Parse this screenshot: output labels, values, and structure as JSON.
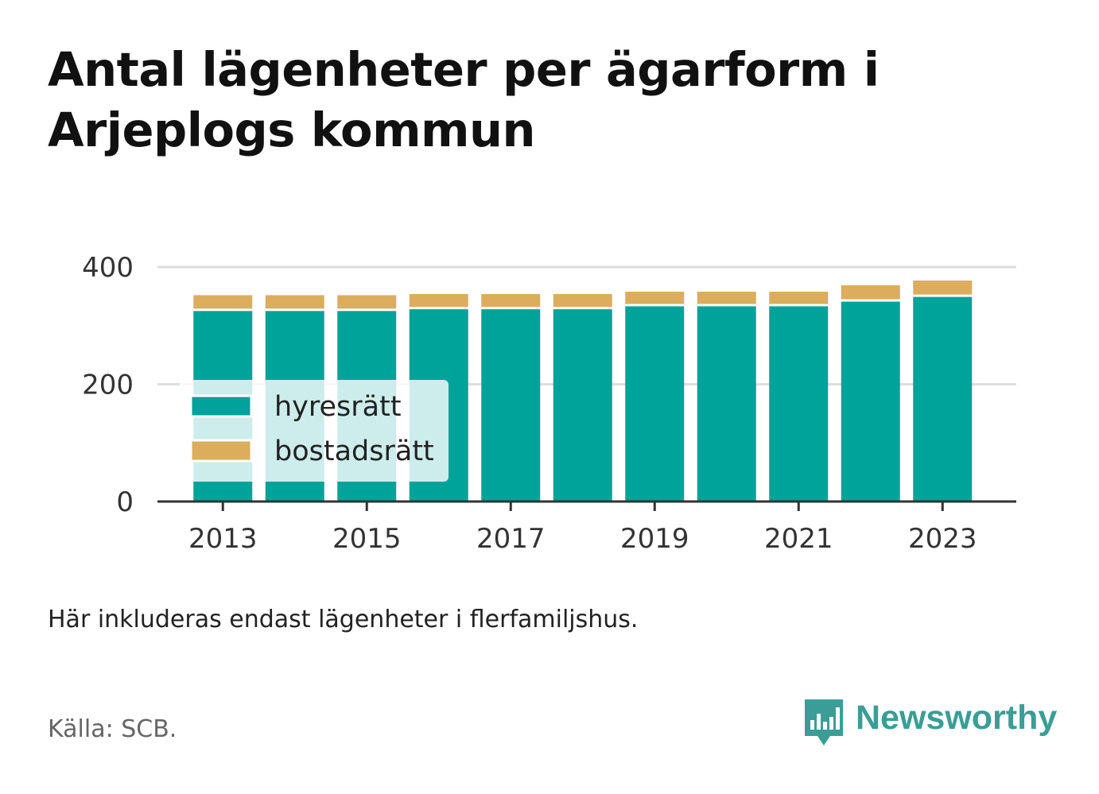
{
  "title": "Antal lägenheter per ägarform i Arjeplogs kommun",
  "note": "Här inkluderas endast lägenheter i flerfamiljshus.",
  "source": "Källa: SCB.",
  "brand": {
    "name": "Newsworthy",
    "icon": "bar-chart-speech-bubble-icon",
    "color": "#3a9e96"
  },
  "chart_data": {
    "type": "bar",
    "stacked": true,
    "categories": [
      "2013",
      "2014",
      "2015",
      "2016",
      "2017",
      "2018",
      "2019",
      "2020",
      "2021",
      "2022",
      "2023"
    ],
    "x_tick_labels": [
      "2013",
      "2015",
      "2017",
      "2019",
      "2021",
      "2023"
    ],
    "series": [
      {
        "name": "hyresrätt",
        "color": "#00a39a",
        "values": [
          325,
          325,
          325,
          328,
          328,
          328,
          333,
          333,
          333,
          341,
          349
        ]
      },
      {
        "name": "bostadsrätt",
        "color": "#dbad5c",
        "values": [
          27,
          27,
          27,
          26,
          26,
          26,
          25,
          25,
          25,
          28,
          28
        ]
      }
    ],
    "ylim": [
      0,
      400
    ],
    "yticks": [
      0,
      200,
      400
    ],
    "grid": true,
    "legend_position": "bottom-left",
    "xlabel": "",
    "ylabel": ""
  }
}
